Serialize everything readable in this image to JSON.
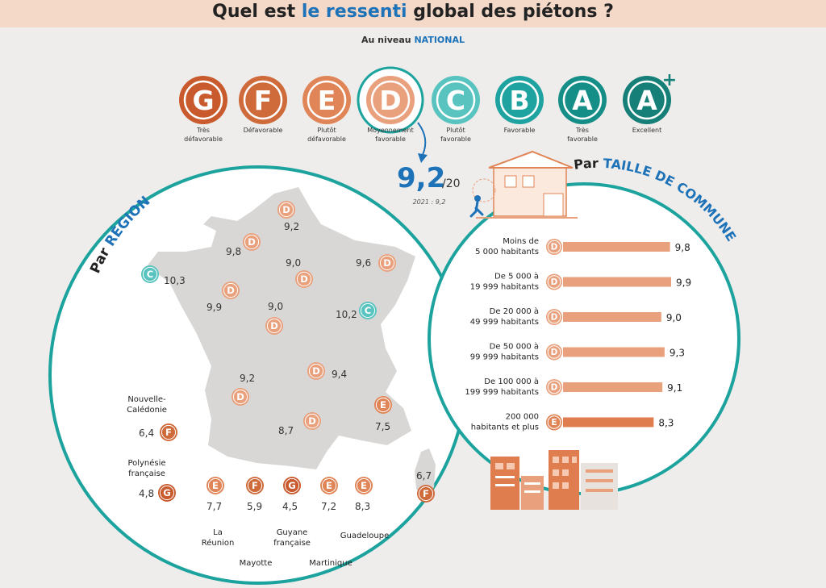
{
  "header": {
    "title_a": "Quel est ",
    "title_b": "le ressenti",
    "title_c": " global des piétons ?",
    "subtitle_a": "Au niveau ",
    "subtitle_b": "NATIONAL"
  },
  "colors": {
    "G": "#c85a2e",
    "F": "#cf6a3b",
    "E": "#e08557",
    "D": "#e9a07c",
    "C": "#58c3bf",
    "B": "#1fa3a0",
    "A": "#168e88",
    "A+": "#157f78",
    "accent_blue": "#1e73b8",
    "teal": "#1ca39e",
    "bar": "#e9a07c",
    "bar_dark": "#e07d4f"
  },
  "chart_data": [
    {
      "type": "legend-scale",
      "grades": [
        {
          "letter": "G",
          "label": [
            "Très",
            "défavorable"
          ]
        },
        {
          "letter": "F",
          "label": [
            "Défavorable"
          ]
        },
        {
          "letter": "E",
          "label": [
            "Plutôt",
            "défavorable"
          ]
        },
        {
          "letter": "D",
          "label": [
            "Moyennement",
            "favorable"
          ]
        },
        {
          "letter": "C",
          "label": [
            "Plutôt",
            "favorable"
          ]
        },
        {
          "letter": "B",
          "label": [
            "Favorable"
          ]
        },
        {
          "letter": "A",
          "label": [
            "Très",
            "favorable"
          ]
        },
        {
          "letter": "A",
          "sup": "+",
          "label": [
            "Excellent"
          ]
        }
      ],
      "national_score": "9,2",
      "national_scale": "/20",
      "previous": "2021 : 9,2"
    },
    {
      "type": "map",
      "title_a": "Par ",
      "title_b": "RÉGION",
      "regions": [
        {
          "grade": "D",
          "value": "9,2"
        },
        {
          "grade": "D",
          "value": "9,8"
        },
        {
          "grade": "C",
          "value": "10,3"
        },
        {
          "grade": "D",
          "value": "9,0"
        },
        {
          "grade": "D",
          "value": "9,6"
        },
        {
          "grade": "D",
          "value": "9,9"
        },
        {
          "grade": "D",
          "value": "9,0"
        },
        {
          "grade": "C",
          "value": "10,2"
        },
        {
          "grade": "D",
          "value": "9,2"
        },
        {
          "grade": "D",
          "value": "9,4"
        },
        {
          "grade": "E",
          "value": "7,5"
        },
        {
          "grade": "D",
          "value": "8,7"
        },
        {
          "grade": "F",
          "value": "6,7"
        }
      ],
      "overseas": [
        {
          "name": [
            "Nouvelle-",
            "Calédonie"
          ],
          "grade": "F",
          "value": "6,4"
        },
        {
          "name": [
            "Polynésie",
            "française"
          ],
          "grade": "G",
          "value": "4,8"
        },
        {
          "name": [
            "La",
            "Réunion"
          ],
          "grade": "E",
          "value": "7,7"
        },
        {
          "name": [
            "Mayotte"
          ],
          "grade": "F",
          "value": "5,9"
        },
        {
          "name": [
            "Guyane",
            "française"
          ],
          "grade": "G",
          "value": "4,5"
        },
        {
          "name": [
            "Martinique"
          ],
          "grade": "E",
          "value": "7,2"
        },
        {
          "name": [
            "Guadeloupe"
          ],
          "grade": "E",
          "value": "8,3"
        }
      ]
    },
    {
      "type": "bar",
      "title_a": "Par ",
      "title_b": "TAILLE DE COMMUNE",
      "xlim": [
        0,
        10
      ],
      "categories": [
        [
          "Moins de",
          "5 000 habitants"
        ],
        [
          "De 5 000 à",
          "19 999 habitants"
        ],
        [
          "De 20 000 à",
          "49 999 habitants"
        ],
        [
          "De 50 000 à",
          "99 999 habitants"
        ],
        [
          "De 100 000 à",
          "199 999 habitants"
        ],
        [
          "200 000",
          "habitants et plus"
        ]
      ],
      "grades": [
        "D",
        "D",
        "D",
        "D",
        "D",
        "E"
      ],
      "values": [
        9.8,
        9.9,
        9.0,
        9.3,
        9.1,
        8.3
      ],
      "value_labels": [
        "9,8",
        "9,9",
        "9,0",
        "9,3",
        "9,1",
        "8,3"
      ]
    }
  ]
}
